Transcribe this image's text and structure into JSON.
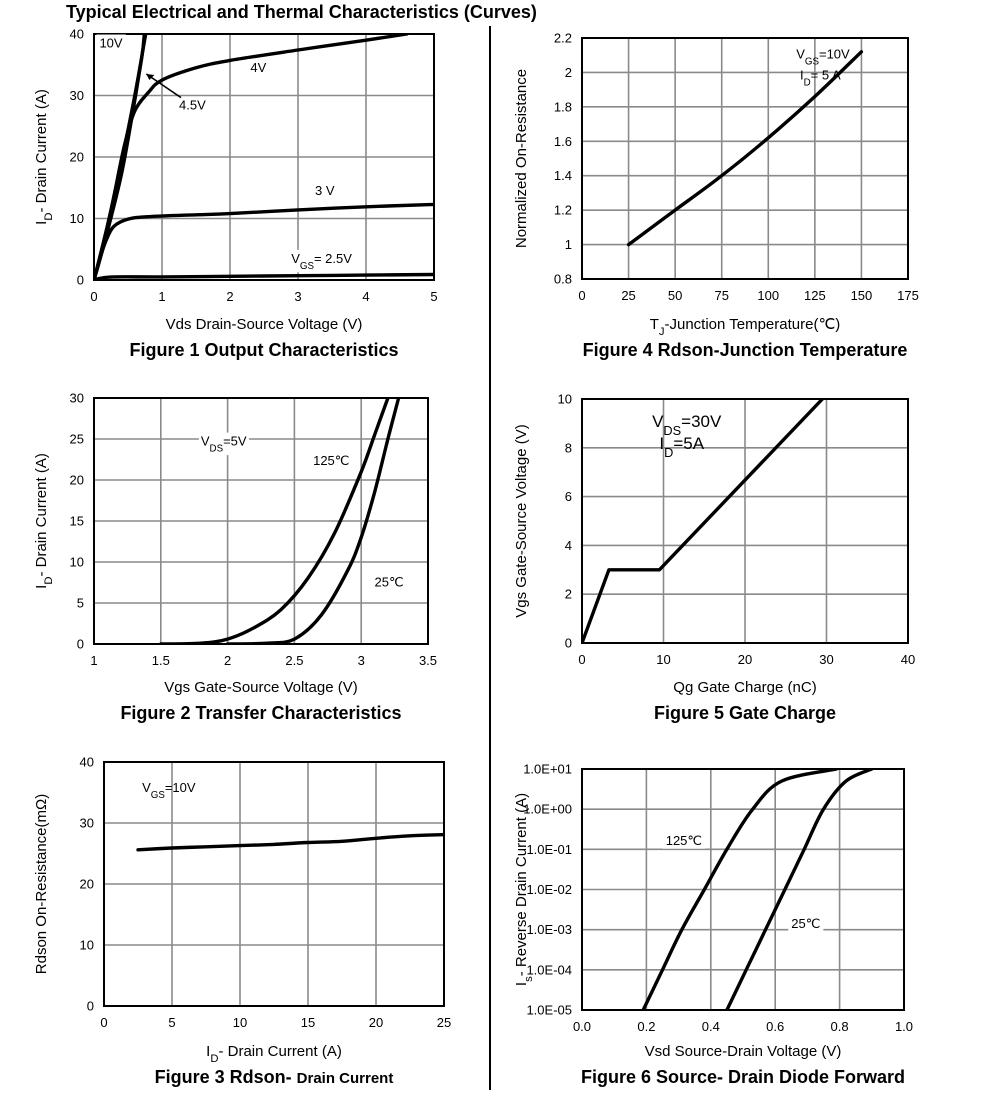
{
  "page": {
    "title": "Typical Electrical and Thermal Characteristics (Curves)"
  },
  "chart_data": [
    {
      "id": "fig1",
      "type": "line",
      "caption": "Figure 1 Output Characteristics",
      "xlabel": "Vds Drain-Source Voltage (V)",
      "ylabel_parts": [
        "I",
        "D",
        "- Drain Current (A)"
      ],
      "xlim": [
        0,
        5
      ],
      "ylim": [
        0,
        40
      ],
      "xticks": [
        0,
        1,
        2,
        3,
        4,
        5
      ],
      "yticks": [
        0,
        10,
        20,
        30,
        40
      ],
      "xtick_labels": [
        "0",
        "1",
        "2",
        "3",
        "4",
        "5"
      ],
      "ytick_labels": [
        "0",
        "10",
        "20",
        "30",
        "40"
      ],
      "grid": true,
      "series": [
        {
          "name": "10V",
          "points": [
            [
              0,
              0
            ],
            [
              0.2,
              9
            ],
            [
              0.4,
              19
            ],
            [
              0.6,
              30
            ],
            [
              0.76,
              40
            ]
          ]
        },
        {
          "name": "4.5V",
          "points": [
            [
              0,
              0
            ],
            [
              0.2,
              8
            ],
            [
              0.4,
              17
            ],
            [
              0.55,
              26
            ],
            [
              0.7,
              36
            ],
            [
              0.74,
              40
            ]
          ]
        },
        {
          "name": "4V",
          "points": [
            [
              0,
              0
            ],
            [
              0.15,
              6
            ],
            [
              0.3,
              14
            ],
            [
              0.45,
              22
            ],
            [
              0.6,
              27.5
            ],
            [
              0.8,
              30.5
            ],
            [
              1.0,
              32.5
            ],
            [
              1.5,
              34.5
            ],
            [
              2,
              35.7
            ],
            [
              3,
              37.4
            ],
            [
              4,
              39
            ],
            [
              4.6,
              40
            ]
          ]
        },
        {
          "name": "3 V",
          "points": [
            [
              0,
              0
            ],
            [
              0.1,
              4
            ],
            [
              0.2,
              7
            ],
            [
              0.3,
              8.8
            ],
            [
              0.5,
              9.9
            ],
            [
              0.8,
              10.3
            ],
            [
              1.5,
              10.6
            ],
            [
              2,
              10.8
            ],
            [
              3,
              11.4
            ],
            [
              4,
              11.9
            ],
            [
              5,
              12.3
            ]
          ]
        },
        {
          "name": "2.5V",
          "points": [
            [
              0,
              0
            ],
            [
              0.1,
              0.3
            ],
            [
              0.3,
              0.5
            ],
            [
              1,
              0.5
            ],
            [
              2,
              0.6
            ],
            [
              3,
              0.7
            ],
            [
              4,
              0.8
            ],
            [
              5,
              0.9
            ]
          ]
        }
      ],
      "annotations": [
        {
          "text": "10V",
          "x": 0.08,
          "y": 37.8
        },
        {
          "text": "4V",
          "x": 2.3,
          "y": 33.8
        },
        {
          "text": "4.5V",
          "x": 1.25,
          "y": 27.7,
          "arrow_to": [
            0.77,
            33.5
          ]
        },
        {
          "text": "3 V",
          "x": 3.25,
          "y": 13.8
        },
        {
          "parts": [
            "V",
            "GS",
            "= 2.5V"
          ],
          "x": 2.9,
          "y": 2.8
        }
      ]
    },
    {
      "id": "fig4",
      "type": "line",
      "caption": "Figure 4 Rdson-Junction Temperature",
      "xlabel_parts": [
        "T",
        "J",
        "-Junction Temperature(℃)"
      ],
      "ylabel": "Normalized On-Resistance",
      "xlim": [
        0,
        175
      ],
      "ylim": [
        0.8,
        2.2
      ],
      "xticks": [
        0,
        25,
        50,
        75,
        100,
        125,
        150,
        175
      ],
      "yticks": [
        0.8,
        1,
        1.2,
        1.4,
        1.6,
        1.8,
        2,
        2.2
      ],
      "xtick_labels": [
        "0",
        "25",
        "50",
        "75",
        "100",
        "125",
        "150",
        "175"
      ],
      "ytick_labels": [
        "0.8",
        "1",
        "1.2",
        "1.4",
        "1.6",
        "1.8",
        "2",
        "2.2"
      ],
      "grid": true,
      "series": [
        {
          "points": [
            [
              25,
              1.0
            ],
            [
              50,
              1.2
            ],
            [
              75,
              1.4
            ],
            [
              100,
              1.62
            ],
            [
              125,
              1.86
            ],
            [
              150,
              2.12
            ]
          ]
        }
      ],
      "annotations": [
        {
          "parts": [
            "V",
            "GS",
            "=10V"
          ],
          "x": 115,
          "y": 2.08
        },
        {
          "parts": [
            "I",
            "D",
            "= 5 A"
          ],
          "x": 117,
          "y": 1.96
        }
      ]
    },
    {
      "id": "fig2",
      "type": "line",
      "caption": "Figure 2 Transfer Characteristics",
      "xlabel": "Vgs Gate-Source Voltage (V)",
      "ylabel_parts": [
        "I",
        "D",
        "- Drain Current (A)"
      ],
      "xlim": [
        1,
        3.5
      ],
      "ylim": [
        0,
        30
      ],
      "xticks": [
        1,
        1.5,
        2,
        2.5,
        3,
        3.5
      ],
      "yticks": [
        0,
        5,
        10,
        15,
        20,
        25,
        30
      ],
      "xtick_labels": [
        "1",
        "1.5",
        "2",
        "2.5",
        "3",
        "3.5"
      ],
      "ytick_labels": [
        "0",
        "5",
        "10",
        "15",
        "20",
        "25",
        "30"
      ],
      "grid": true,
      "series": [
        {
          "name": "125℃",
          "points": [
            [
              1.5,
              0
            ],
            [
              1.8,
              0.1
            ],
            [
              2.0,
              0.6
            ],
            [
              2.2,
              2.0
            ],
            [
              2.4,
              4.2
            ],
            [
              2.6,
              8
            ],
            [
              2.8,
              13.5
            ],
            [
              3.0,
              21
            ],
            [
              3.1,
              25.5
            ],
            [
              3.2,
              30
            ]
          ]
        },
        {
          "name": "25℃",
          "points": [
            [
              2.0,
              0
            ],
            [
              2.3,
              0.1
            ],
            [
              2.5,
              0.6
            ],
            [
              2.7,
              3.5
            ],
            [
              2.9,
              9
            ],
            [
              3.0,
              13
            ],
            [
              3.1,
              18.5
            ],
            [
              3.2,
              25
            ],
            [
              3.28,
              30
            ]
          ]
        }
      ],
      "annotations": [
        {
          "parts": [
            "V",
            "DS",
            "=5V"
          ],
          "x": 1.8,
          "y": 24.2
        },
        {
          "text": "125℃",
          "x": 2.64,
          "y": 21.8
        },
        {
          "text": "25℃",
          "x": 3.1,
          "y": 7.0
        }
      ]
    },
    {
      "id": "fig5",
      "type": "line",
      "caption": "Figure 5 Gate Charge",
      "xlabel": "Qg Gate Charge (nC)",
      "ylabel": "Vgs Gate-Source Voltage (V)",
      "xlim": [
        0,
        40
      ],
      "ylim": [
        0,
        10
      ],
      "xticks": [
        0,
        10,
        20,
        30,
        40
      ],
      "yticks": [
        0,
        2,
        4,
        6,
        8,
        10
      ],
      "xtick_labels": [
        "0",
        "10",
        "20",
        "30",
        "40"
      ],
      "ytick_labels": [
        "0",
        "2",
        "4",
        "6",
        "8",
        "10"
      ],
      "grid": true,
      "series": [
        {
          "points": [
            [
              0,
              0
            ],
            [
              3.3,
              3.0
            ],
            [
              9.5,
              3.0
            ],
            [
              29.5,
              10
            ]
          ]
        }
      ],
      "annotations": [
        {
          "parts": [
            "V",
            "DS",
            "=30V"
          ],
          "x": 8.6,
          "y": 8.85
        },
        {
          "parts": [
            "I",
            "D",
            "=5A"
          ],
          "x": 9.5,
          "y": 7.95
        }
      ]
    },
    {
      "id": "fig3",
      "type": "line",
      "caption_main": "Figure 3 Rdson- ",
      "caption_small": "Drain Current",
      "xlabel_parts": [
        "I",
        "D",
        "- Drain Current (A)"
      ],
      "ylabel": "Rdson On-Resistance(mΩ)",
      "xlim": [
        0,
        25
      ],
      "ylim": [
        0,
        40
      ],
      "xticks": [
        0,
        5,
        10,
        15,
        20,
        25
      ],
      "yticks": [
        0,
        10,
        20,
        30,
        40
      ],
      "xtick_labels": [
        "0",
        "5",
        "10",
        "15",
        "20",
        "25"
      ],
      "ytick_labels": [
        "0",
        "10",
        "20",
        "30",
        "40"
      ],
      "grid": true,
      "series": [
        {
          "points": [
            [
              2.5,
              25.6
            ],
            [
              5,
              25.9
            ],
            [
              7.5,
              26.1
            ],
            [
              10,
              26.3
            ],
            [
              12.5,
              26.5
            ],
            [
              15,
              26.8
            ],
            [
              17.5,
              27.0
            ],
            [
              20,
              27.5
            ],
            [
              22.5,
              27.9
            ],
            [
              25,
              28.1
            ]
          ]
        }
      ],
      "annotations": [
        {
          "parts": [
            "V",
            "GS",
            "=10V"
          ],
          "x": 2.8,
          "y": 35.1
        }
      ]
    },
    {
      "id": "fig6",
      "type": "line",
      "caption": "Figure 6 Source- Drain Diode Forward",
      "xlabel": "Vsd Source-Drain Voltage (V)",
      "ylabel_parts": [
        "I",
        "s",
        "- Reverse Drain Current (A)"
      ],
      "yscale": "log",
      "xlim": [
        0.0,
        1.0
      ],
      "ylim": [
        1e-05,
        10
      ],
      "xticks": [
        0.0,
        0.2,
        0.4,
        0.6,
        0.8,
        1.0
      ],
      "yticks": [
        1e-05,
        0.0001,
        0.001,
        0.01,
        0.1,
        1,
        10
      ],
      "xtick_labels": [
        "0.0",
        "0.2",
        "0.4",
        "0.6",
        "0.8",
        "1.0"
      ],
      "ytick_labels": [
        "1.0E-05",
        "1.0E-04",
        "1.0E-03",
        "1.0E-02",
        "1.0E-01",
        "1.0E+00",
        "1.0E+01"
      ],
      "grid": true,
      "series": [
        {
          "name": "125℃",
          "points": [
            [
              0.19,
              1e-05
            ],
            [
              0.25,
              0.0001
            ],
            [
              0.31,
              0.001
            ],
            [
              0.38,
              0.01
            ],
            [
              0.45,
              0.1
            ],
            [
              0.53,
              1
            ],
            [
              0.62,
              5
            ],
            [
              0.79,
              10
            ]
          ]
        },
        {
          "name": "25℃",
          "points": [
            [
              0.45,
              1e-05
            ],
            [
              0.51,
              0.0001
            ],
            [
              0.57,
              0.001
            ],
            [
              0.63,
              0.01
            ],
            [
              0.69,
              0.1
            ],
            [
              0.75,
              1
            ],
            [
              0.82,
              5
            ],
            [
              0.9,
              10
            ]
          ]
        }
      ],
      "annotations": [
        {
          "text": "125℃",
          "x": 0.26,
          "y": 0.13
        },
        {
          "text": "25℃",
          "x": 0.65,
          "y": 0.0011
        }
      ]
    }
  ]
}
